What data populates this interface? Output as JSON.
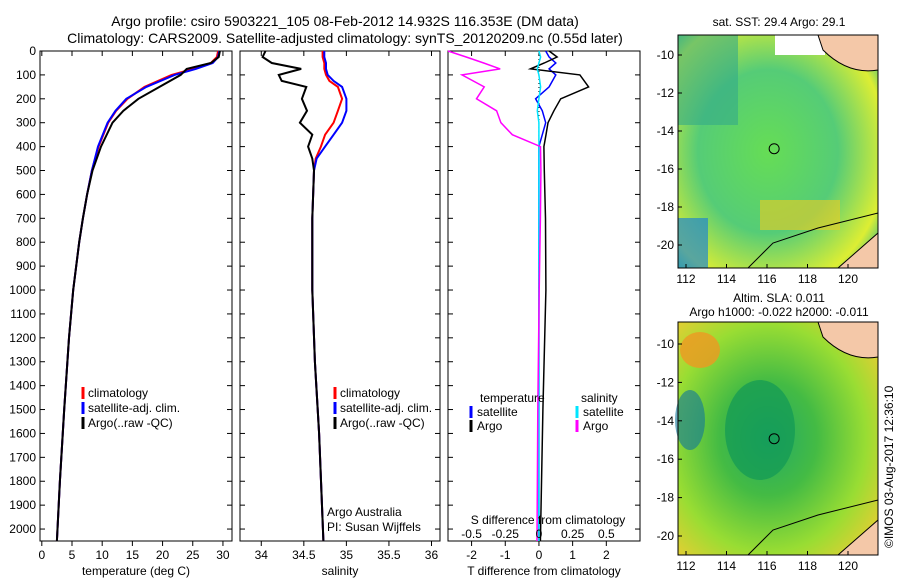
{
  "title_line1": "Argo profile: csiro 5903221_105 08-Feb-2012 14.932S 116.353E (DM data)",
  "title_line2": "Climatology: CARS2009. Satellite-adjusted climatology: synTS_20120209.nc (0.55d later)",
  "footer_stamp": "©IMOS 03-Aug-2017 12:36:10",
  "colors": {
    "climatology": "#ff0000",
    "satellite": "#0000ff",
    "argo": "#000000",
    "sal_satellite": "#00e5ff",
    "sal_argo": "#ff00ff"
  },
  "chart_data": [
    {
      "type": "line",
      "name": "temperature-profile",
      "xlabel": "temperature (deg C)",
      "xlim": [
        -0.3,
        31.5
      ],
      "xticks": [
        "0",
        "5",
        "10",
        "15",
        "20",
        "25",
        "30"
      ],
      "ylim": [
        0,
        2050
      ],
      "yticks": [
        "0",
        "100",
        "200",
        "300",
        "400",
        "500",
        "600",
        "700",
        "800",
        "900",
        "1000",
        "1100",
        "1200",
        "1300",
        "1400",
        "1500",
        "1600",
        "1700",
        "1800",
        "1900",
        "2000"
      ],
      "legend": [
        "climatology",
        "satellite-adj. clim.",
        "Argo(..raw -QC)"
      ],
      "depth": [
        0,
        25,
        50,
        75,
        100,
        150,
        200,
        250,
        300,
        400,
        500,
        600,
        700,
        800,
        1000,
        1200,
        1500,
        1800,
        2050
      ],
      "series": [
        {
          "name": "climatology",
          "values": [
            29.2,
            29.0,
            28.0,
            25.0,
            21.5,
            17.0,
            14.2,
            12.3,
            11.0,
            9.4,
            8.3,
            7.5,
            6.8,
            6.2,
            5.2,
            4.5,
            3.7,
            3.0,
            2.5
          ]
        },
        {
          "name": "satellite-adj. clim.",
          "values": [
            29.4,
            29.2,
            28.3,
            25.5,
            22.0,
            17.3,
            14.0,
            12.2,
            10.9,
            9.3,
            8.3,
            7.5,
            6.8,
            6.2,
            5.2,
            4.5,
            3.7,
            3.0,
            2.5
          ]
        },
        {
          "name": "Argo",
          "values": [
            29.5,
            29.3,
            28.0,
            24.0,
            23.0,
            19.5,
            16.0,
            13.5,
            11.7,
            9.8,
            8.4,
            7.5,
            6.8,
            6.2,
            5.2,
            4.5,
            3.7,
            3.0,
            2.5
          ]
        }
      ]
    },
    {
      "type": "line",
      "name": "salinity-profile",
      "xlabel": "salinity",
      "xlim": [
        33.75,
        36.1
      ],
      "xticks": [
        "34",
        "34.5",
        "35",
        "35.5",
        "36"
      ],
      "legend": [
        "climatology",
        "satellite-adj. clim.",
        "Argo(..raw -QC)"
      ],
      "annotation": [
        "Argo Australia",
        "PI: Susan Wijffels"
      ],
      "depth": [
        0,
        25,
        50,
        75,
        100,
        125,
        150,
        200,
        250,
        300,
        350,
        400,
        450,
        500,
        700,
        1000,
        1300,
        1600,
        2050
      ],
      "series": [
        {
          "name": "climatology",
          "values": [
            34.72,
            34.72,
            34.74,
            34.74,
            34.76,
            34.8,
            34.9,
            34.95,
            34.9,
            34.85,
            34.75,
            34.7,
            34.64,
            34.62,
            34.6,
            34.6,
            34.63,
            34.68,
            34.73
          ]
        },
        {
          "name": "satellite-adj. clim.",
          "values": [
            34.74,
            34.74,
            34.76,
            34.76,
            34.78,
            34.85,
            34.95,
            35.0,
            35.0,
            34.95,
            34.85,
            34.75,
            34.65,
            34.62,
            34.6,
            34.6,
            34.63,
            34.68,
            34.73
          ]
        },
        {
          "name": "Argo",
          "values": [
            34.05,
            34.0,
            34.1,
            34.45,
            34.2,
            34.25,
            34.55,
            34.5,
            34.55,
            34.45,
            34.6,
            34.55,
            34.6,
            34.62,
            34.6,
            34.6,
            34.63,
            34.68,
            34.73
          ]
        }
      ]
    },
    {
      "type": "line",
      "name": "difference-profile",
      "xlabel": "T difference from climatology",
      "xlabel_top": "S difference from climatology",
      "xlim": [
        -2.7,
        3.0
      ],
      "xticks": [
        "-2",
        "-1",
        "0",
        "1",
        "2"
      ],
      "xticks_top": [
        "-0.5",
        "-0.25",
        "0",
        "0.25",
        "0.5"
      ],
      "legend_temperature": {
        "title": "temperature",
        "items": [
          "satellite",
          "Argo"
        ]
      },
      "legend_salinity": {
        "title": "salinity",
        "items": [
          "satellite",
          "Argo"
        ]
      },
      "depth": [
        0,
        25,
        50,
        75,
        100,
        150,
        200,
        250,
        300,
        350,
        400,
        500,
        700,
        1000,
        1500,
        2050
      ],
      "series": [
        {
          "name": "T satellite",
          "values": [
            0.2,
            0.3,
            0.5,
            0.3,
            0.5,
            0.3,
            -0.1,
            0.1,
            0.2,
            0.1,
            0.0,
            0.0,
            0.0,
            0.0,
            0.0,
            0.0
          ]
        },
        {
          "name": "T Argo",
          "values": [
            0.3,
            0.5,
            0.1,
            -0.3,
            1.2,
            1.5,
            0.7,
            0.5,
            0.3,
            0.2,
            0.1,
            0.1,
            0.15,
            0.2,
            0.15,
            0.1
          ]
        },
        {
          "name": "S satellite (x4 on T scale)",
          "values": [
            0.0,
            0.05,
            0.0,
            -0.05,
            0.0,
            0.05,
            0.0,
            -0.05,
            0.0,
            0.0,
            0.0,
            0.0,
            0.0,
            0.0,
            0.0,
            0.0
          ]
        },
        {
          "name": "S Argo (x4 on T scale)",
          "values": [
            -2.7,
            -2.2,
            -1.7,
            -1.2,
            -2.3,
            -1.6,
            -1.8,
            -1.2,
            -1.1,
            -0.8,
            0.0,
            0.0,
            0.0,
            0.0,
            0.0,
            0.0
          ]
        }
      ]
    }
  ],
  "maps": [
    {
      "title": "sat. SST: 29.4 Argo: 29.1",
      "xticks": [
        "112",
        "114",
        "116",
        "118",
        "120"
      ],
      "yticks": [
        "-10",
        "-12",
        "-14",
        "-16",
        "-18",
        "-20"
      ]
    },
    {
      "title": "Altim. SLA: 0.011",
      "subtitle": "Argo h1000: -0.022 h2000: -0.011",
      "xticks": [
        "112",
        "114",
        "116",
        "118",
        "120"
      ],
      "yticks": [
        "-10",
        "-12",
        "-14",
        "-16",
        "-18",
        "-20"
      ]
    }
  ]
}
